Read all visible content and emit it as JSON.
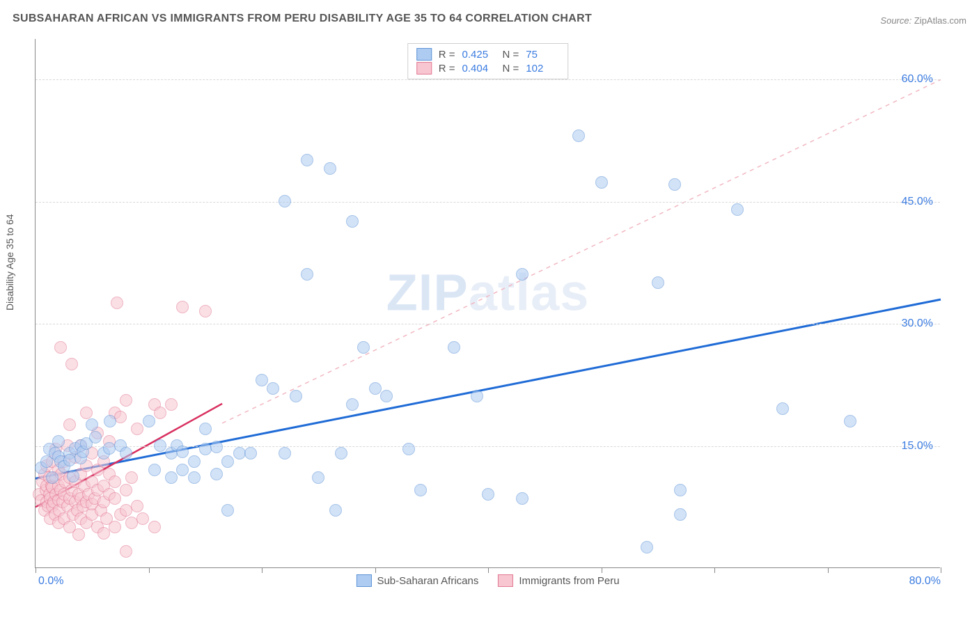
{
  "title": "SUBSAHARAN AFRICAN VS IMMIGRANTS FROM PERU DISABILITY AGE 35 TO 64 CORRELATION CHART",
  "source_label": "Source:",
  "source_value": "ZipAtlas.com",
  "watermark": {
    "bold": "ZIP",
    "rest": "atlas"
  },
  "chart": {
    "type": "scatter",
    "yaxis_title": "Disability Age 35 to 64",
    "xlim": [
      0,
      80
    ],
    "ylim": [
      0,
      65
    ],
    "x_origin_label": "0.0%",
    "x_max_label": "80.0%",
    "y_ticks": [
      15,
      30,
      45,
      60
    ],
    "y_tick_labels": [
      "15.0%",
      "30.0%",
      "45.0%",
      "60.0%"
    ],
    "x_tick_positions": [
      0,
      10,
      20,
      30,
      40,
      50,
      60,
      70,
      80
    ],
    "axis_label_color": "#3a7be0",
    "grid_color": "#d8d8d8",
    "background_color": "#ffffff",
    "plot_border_color": "#888888",
    "marker_radius": 9,
    "marker_opacity": 0.55,
    "marker_border_width": 1,
    "series": [
      {
        "name": "Sub-Saharan Africans",
        "fill": "#aeccf2",
        "stroke": "#5e93d6",
        "line_color": "#1f6bd6",
        "line_width": 3,
        "line_dash": "none",
        "trend": {
          "x1": 0,
          "y1": 11,
          "x2": 80,
          "y2": 33
        },
        "extrap": {
          "x1": 16.5,
          "y1": 17.8,
          "x2": 80,
          "y2": 60,
          "color": "#f1b7c2",
          "dash": "6,6",
          "width": 1.5
        },
        "R": "0.425",
        "N": "75",
        "points": [
          [
            0.5,
            12.2
          ],
          [
            1.0,
            13.0
          ],
          [
            1.2,
            14.5
          ],
          [
            1.5,
            11.0
          ],
          [
            1.7,
            14.0
          ],
          [
            2.0,
            13.6
          ],
          [
            2.0,
            15.5
          ],
          [
            2.2,
            13.0
          ],
          [
            2.5,
            12.4
          ],
          [
            3.0,
            14.0
          ],
          [
            3.0,
            13.2
          ],
          [
            3.3,
            11.2
          ],
          [
            3.5,
            14.6
          ],
          [
            4.0,
            15.0
          ],
          [
            4.0,
            13.4
          ],
          [
            4.2,
            14.2
          ],
          [
            4.5,
            15.2
          ],
          [
            5.0,
            17.5
          ],
          [
            5.3,
            16.0
          ],
          [
            6.0,
            14.0
          ],
          [
            6.5,
            14.6
          ],
          [
            6.6,
            18.0
          ],
          [
            7.5,
            15.0
          ],
          [
            8.0,
            14.0
          ],
          [
            10.0,
            18.0
          ],
          [
            10.5,
            12.0
          ],
          [
            11.0,
            15.0
          ],
          [
            12.0,
            11.0
          ],
          [
            12.0,
            14.0
          ],
          [
            12.5,
            15.0
          ],
          [
            13.0,
            12.0
          ],
          [
            13.0,
            14.2
          ],
          [
            14.0,
            11.0
          ],
          [
            14.0,
            13.0
          ],
          [
            15.0,
            14.5
          ],
          [
            15.0,
            17.0
          ],
          [
            16.0,
            11.5
          ],
          [
            16.0,
            14.8
          ],
          [
            17.0,
            7.0
          ],
          [
            17.0,
            13.0
          ],
          [
            18.0,
            14.0
          ],
          [
            19.0,
            14.0
          ],
          [
            20.0,
            23.0
          ],
          [
            21.0,
            22.0
          ],
          [
            22.0,
            14.0
          ],
          [
            22.0,
            45.0
          ],
          [
            23.0,
            21.0
          ],
          [
            24.0,
            36.0
          ],
          [
            24.0,
            50.0
          ],
          [
            25.0,
            11.0
          ],
          [
            26.0,
            49.0
          ],
          [
            26.5,
            7.0
          ],
          [
            27.0,
            14.0
          ],
          [
            28.0,
            20.0
          ],
          [
            28.0,
            42.5
          ],
          [
            29.0,
            27.0
          ],
          [
            30.0,
            22.0
          ],
          [
            31.0,
            21.0
          ],
          [
            33.0,
            14.5
          ],
          [
            34.0,
            9.5
          ],
          [
            37.0,
            27.0
          ],
          [
            39.0,
            21.0
          ],
          [
            40.0,
            9.0
          ],
          [
            43.0,
            36.0
          ],
          [
            43.0,
            8.5
          ],
          [
            48.0,
            53.0
          ],
          [
            50.0,
            47.3
          ],
          [
            54.0,
            2.5
          ],
          [
            55.0,
            35.0
          ],
          [
            56.5,
            47.0
          ],
          [
            57.0,
            6.5
          ],
          [
            57.0,
            9.5
          ],
          [
            62.0,
            44.0
          ],
          [
            66.0,
            19.5
          ],
          [
            72.0,
            18.0
          ]
        ]
      },
      {
        "name": "Immigrants from Peru",
        "fill": "#f7c6d1",
        "stroke": "#e37893",
        "line_color": "#d82e5e",
        "line_width": 2.5,
        "line_dash": "none",
        "trend": {
          "x1": 0,
          "y1": 7.5,
          "x2": 16.5,
          "y2": 20.2
        },
        "R": "0.404",
        "N": "102",
        "points": [
          [
            0.3,
            9.0
          ],
          [
            0.5,
            8.2
          ],
          [
            0.6,
            10.5
          ],
          [
            0.8,
            7.0
          ],
          [
            0.8,
            11.5
          ],
          [
            0.9,
            9.5
          ],
          [
            1.0,
            8.0
          ],
          [
            1.0,
            10.0
          ],
          [
            1.0,
            12.5
          ],
          [
            1.1,
            7.5
          ],
          [
            1.2,
            9.0
          ],
          [
            1.2,
            11.0
          ],
          [
            1.3,
            6.0
          ],
          [
            1.3,
            8.5
          ],
          [
            1.4,
            10.0
          ],
          [
            1.5,
            7.5
          ],
          [
            1.5,
            9.8
          ],
          [
            1.5,
            13.0
          ],
          [
            1.6,
            8.0
          ],
          [
            1.7,
            6.5
          ],
          [
            1.8,
            9.0
          ],
          [
            1.8,
            11.0
          ],
          [
            1.8,
            14.5
          ],
          [
            2.0,
            5.5
          ],
          [
            2.0,
            8.3
          ],
          [
            2.0,
            10.0
          ],
          [
            2.0,
            12.0
          ],
          [
            2.1,
            7.0
          ],
          [
            2.2,
            9.5
          ],
          [
            2.2,
            27.0
          ],
          [
            2.3,
            11.5
          ],
          [
            2.4,
            8.0
          ],
          [
            2.5,
            6.0
          ],
          [
            2.5,
            9.0
          ],
          [
            2.5,
            13.0
          ],
          [
            2.6,
            10.5
          ],
          [
            2.8,
            7.5
          ],
          [
            2.8,
            15.0
          ],
          [
            3.0,
            5.0
          ],
          [
            3.0,
            8.5
          ],
          [
            3.0,
            11.0
          ],
          [
            3.0,
            17.5
          ],
          [
            3.2,
            9.5
          ],
          [
            3.2,
            25.0
          ],
          [
            3.3,
            6.5
          ],
          [
            3.5,
            8.0
          ],
          [
            3.5,
            10.5
          ],
          [
            3.5,
            13.5
          ],
          [
            3.7,
            7.0
          ],
          [
            3.8,
            4.0
          ],
          [
            3.8,
            9.0
          ],
          [
            4.0,
            6.0
          ],
          [
            4.0,
            8.5
          ],
          [
            4.0,
            11.5
          ],
          [
            4.0,
            15.0
          ],
          [
            4.2,
            7.5
          ],
          [
            4.3,
            10.0
          ],
          [
            4.5,
            5.5
          ],
          [
            4.5,
            8.0
          ],
          [
            4.5,
            12.5
          ],
          [
            4.5,
            19.0
          ],
          [
            4.7,
            9.0
          ],
          [
            5.0,
            6.5
          ],
          [
            5.0,
            7.8
          ],
          [
            5.0,
            10.5
          ],
          [
            5.0,
            14.0
          ],
          [
            5.2,
            8.5
          ],
          [
            5.5,
            5.0
          ],
          [
            5.5,
            9.5
          ],
          [
            5.5,
            12.0
          ],
          [
            5.5,
            16.5
          ],
          [
            5.8,
            7.0
          ],
          [
            6.0,
            4.2
          ],
          [
            6.0,
            8.0
          ],
          [
            6.0,
            10.0
          ],
          [
            6.0,
            13.0
          ],
          [
            6.3,
            6.0
          ],
          [
            6.5,
            9.0
          ],
          [
            6.5,
            11.5
          ],
          [
            6.5,
            15.5
          ],
          [
            7.0,
            5.0
          ],
          [
            7.0,
            8.5
          ],
          [
            7.0,
            10.5
          ],
          [
            7.0,
            19.0
          ],
          [
            7.2,
            32.5
          ],
          [
            7.5,
            6.5
          ],
          [
            7.5,
            18.5
          ],
          [
            8.0,
            2.0
          ],
          [
            8.0,
            7.0
          ],
          [
            8.0,
            9.5
          ],
          [
            8.0,
            20.5
          ],
          [
            8.5,
            5.5
          ],
          [
            8.5,
            11.0
          ],
          [
            9.0,
            7.5
          ],
          [
            9.0,
            17.0
          ],
          [
            9.5,
            6.0
          ],
          [
            10.5,
            20.0
          ],
          [
            10.5,
            5.0
          ],
          [
            11.0,
            19.0
          ],
          [
            12.0,
            20.0
          ],
          [
            13.0,
            32.0
          ],
          [
            15.0,
            31.5
          ]
        ]
      }
    ],
    "legend_bottom": [
      {
        "label": "Sub-Saharan Africans",
        "fill": "#aeccf2",
        "stroke": "#5e93d6"
      },
      {
        "label": "Immigrants from Peru",
        "fill": "#f7c6d1",
        "stroke": "#e37893"
      }
    ],
    "legend_top_labels": {
      "R": "R =",
      "N": "N ="
    }
  }
}
